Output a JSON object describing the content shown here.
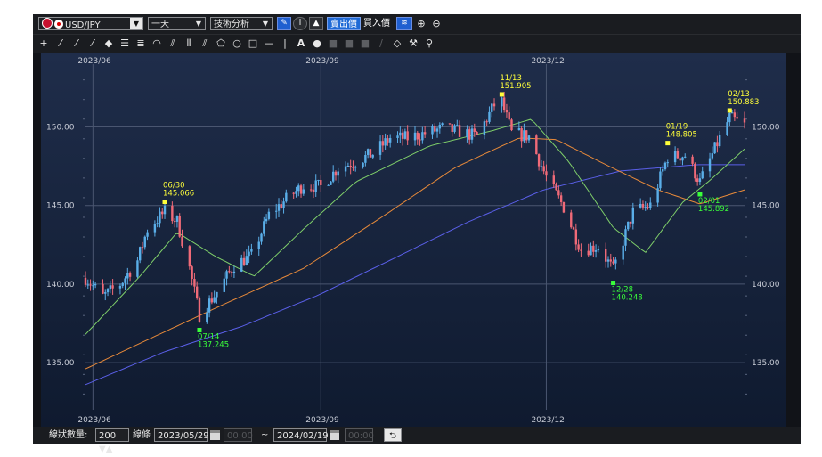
{
  "toolbar": {
    "symbol": "USD/JPY",
    "period": "一天",
    "analysis": "技術分析",
    "sell_price": "賣出價",
    "buy_price": "買入價"
  },
  "bottom": {
    "candle_count_label": "線狀數量:",
    "candle_count": "200",
    "line_label": "線條",
    "start_date": "2023/05/29",
    "start_time": "00:00",
    "tilde": "~",
    "end_date": "2024/02/19",
    "end_time": "00:00"
  },
  "chart_data": {
    "type": "candlestick",
    "ylim": [
      132.0,
      154.0
    ],
    "y_ticks": [
      "150.00",
      "145.00",
      "140.00",
      "135.00"
    ],
    "y_tick_values": [
      150,
      145,
      140,
      135
    ],
    "x_tick_labels": [
      "2023/06",
      "2023/09",
      "2023/12"
    ],
    "x_tick_dates": [
      "2023-06-01",
      "2023-09-01",
      "2023-12-01"
    ],
    "date_range": [
      "2023-05-29",
      "2024-02-19"
    ],
    "colors": {
      "up": "#5aaee8",
      "down": "#f06a78",
      "ma_short": "#7fcf6a",
      "ma_mid": "#e88a3a",
      "ma_long": "#5a5fe8",
      "high_label": "#ffff3a",
      "low_label": "#3aff3a"
    },
    "annotations": [
      {
        "kind": "high",
        "date": "06/30",
        "value": "145.066",
        "x": "2023-06-30",
        "y": 145.066
      },
      {
        "kind": "low",
        "date": "07/14",
        "value": "137.245",
        "x": "2023-07-14",
        "y": 137.245
      },
      {
        "kind": "high",
        "date": "11/13",
        "value": "151.905",
        "x": "2023-11-13",
        "y": 151.905
      },
      {
        "kind": "low",
        "date": "12/28",
        "value": "140.248",
        "x": "2023-12-28",
        "y": 140.248
      },
      {
        "kind": "high",
        "date": "01/19",
        "value": "148.805",
        "x": "2024-01-19",
        "y": 148.805
      },
      {
        "kind": "low",
        "date": "02/01",
        "value": "145.892",
        "x": "2024-02-01",
        "y": 145.892
      },
      {
        "kind": "high",
        "date": "02/13",
        "value": "150.883",
        "x": "2024-02-13",
        "y": 150.883
      }
    ],
    "close_path": [
      [
        "2023-05-29",
        140.4
      ],
      [
        "2023-06-05",
        139.2
      ],
      [
        "2023-06-12",
        140.0
      ],
      [
        "2023-06-19",
        141.5
      ],
      [
        "2023-06-23",
        143.5
      ],
      [
        "2023-06-30",
        144.6
      ],
      [
        "2023-07-05",
        144.0
      ],
      [
        "2023-07-10",
        141.0
      ],
      [
        "2023-07-14",
        138.0
      ],
      [
        "2023-07-21",
        139.5
      ],
      [
        "2023-07-28",
        141.2
      ],
      [
        "2023-08-04",
        141.8
      ],
      [
        "2023-08-11",
        144.4
      ],
      [
        "2023-08-18",
        145.4
      ],
      [
        "2023-08-25",
        146.3
      ],
      [
        "2023-09-01",
        146.2
      ],
      [
        "2023-09-08",
        147.4
      ],
      [
        "2023-09-15",
        147.8
      ],
      [
        "2023-09-22",
        148.3
      ],
      [
        "2023-09-29",
        149.3
      ],
      [
        "2023-10-06",
        149.3
      ],
      [
        "2023-10-13",
        149.6
      ],
      [
        "2023-10-20",
        149.9
      ],
      [
        "2023-10-27",
        149.7
      ],
      [
        "2023-11-03",
        149.4
      ],
      [
        "2023-11-10",
        151.4
      ],
      [
        "2023-11-13",
        151.6
      ],
      [
        "2023-11-17",
        149.6
      ],
      [
        "2023-11-24",
        149.4
      ],
      [
        "2023-12-01",
        146.8
      ],
      [
        "2023-12-08",
        144.9
      ],
      [
        "2023-12-15",
        142.2
      ],
      [
        "2023-12-22",
        142.4
      ],
      [
        "2023-12-28",
        140.9
      ],
      [
        "2024-01-05",
        144.6
      ],
      [
        "2024-01-12",
        145.0
      ],
      [
        "2024-01-19",
        148.1
      ],
      [
        "2024-01-26",
        148.2
      ],
      [
        "2024-02-01",
        146.5
      ],
      [
        "2024-02-09",
        149.3
      ],
      [
        "2024-02-13",
        150.6
      ],
      [
        "2024-02-19",
        150.1
      ]
    ],
    "ma_short": [
      [
        "2023-05-29",
        136.8
      ],
      [
        "2023-06-20",
        140.5
      ],
      [
        "2023-07-05",
        143.3
      ],
      [
        "2023-07-20",
        141.8
      ],
      [
        "2023-08-05",
        140.5
      ],
      [
        "2023-08-25",
        143.5
      ],
      [
        "2023-09-15",
        146.5
      ],
      [
        "2023-10-15",
        148.8
      ],
      [
        "2023-11-10",
        149.8
      ],
      [
        "2023-11-25",
        150.5
      ],
      [
        "2023-12-10",
        147.8
      ],
      [
        "2023-12-28",
        143.6
      ],
      [
        "2024-01-10",
        142.0
      ],
      [
        "2024-01-25",
        145.2
      ],
      [
        "2024-02-05",
        146.6
      ],
      [
        "2024-02-19",
        148.6
      ]
    ],
    "ma_mid": [
      [
        "2023-05-29",
        134.6
      ],
      [
        "2023-06-25",
        136.6
      ],
      [
        "2023-07-25",
        138.8
      ],
      [
        "2023-08-25",
        141.0
      ],
      [
        "2023-09-25",
        144.2
      ],
      [
        "2023-10-25",
        147.4
      ],
      [
        "2023-11-20",
        149.3
      ],
      [
        "2023-12-05",
        149.2
      ],
      [
        "2023-12-25",
        147.6
      ],
      [
        "2024-01-15",
        146.0
      ],
      [
        "2024-02-01",
        145.1
      ],
      [
        "2024-02-19",
        146.0
      ]
    ],
    "ma_long": [
      [
        "2023-05-29",
        133.6
      ],
      [
        "2023-06-30",
        135.7
      ],
      [
        "2023-07-31",
        137.3
      ],
      [
        "2023-08-31",
        139.3
      ],
      [
        "2023-09-30",
        141.6
      ],
      [
        "2023-10-31",
        144.0
      ],
      [
        "2023-11-30",
        146.0
      ],
      [
        "2023-12-31",
        147.2
      ],
      [
        "2024-01-31",
        147.6
      ],
      [
        "2024-02-19",
        147.6
      ]
    ]
  }
}
